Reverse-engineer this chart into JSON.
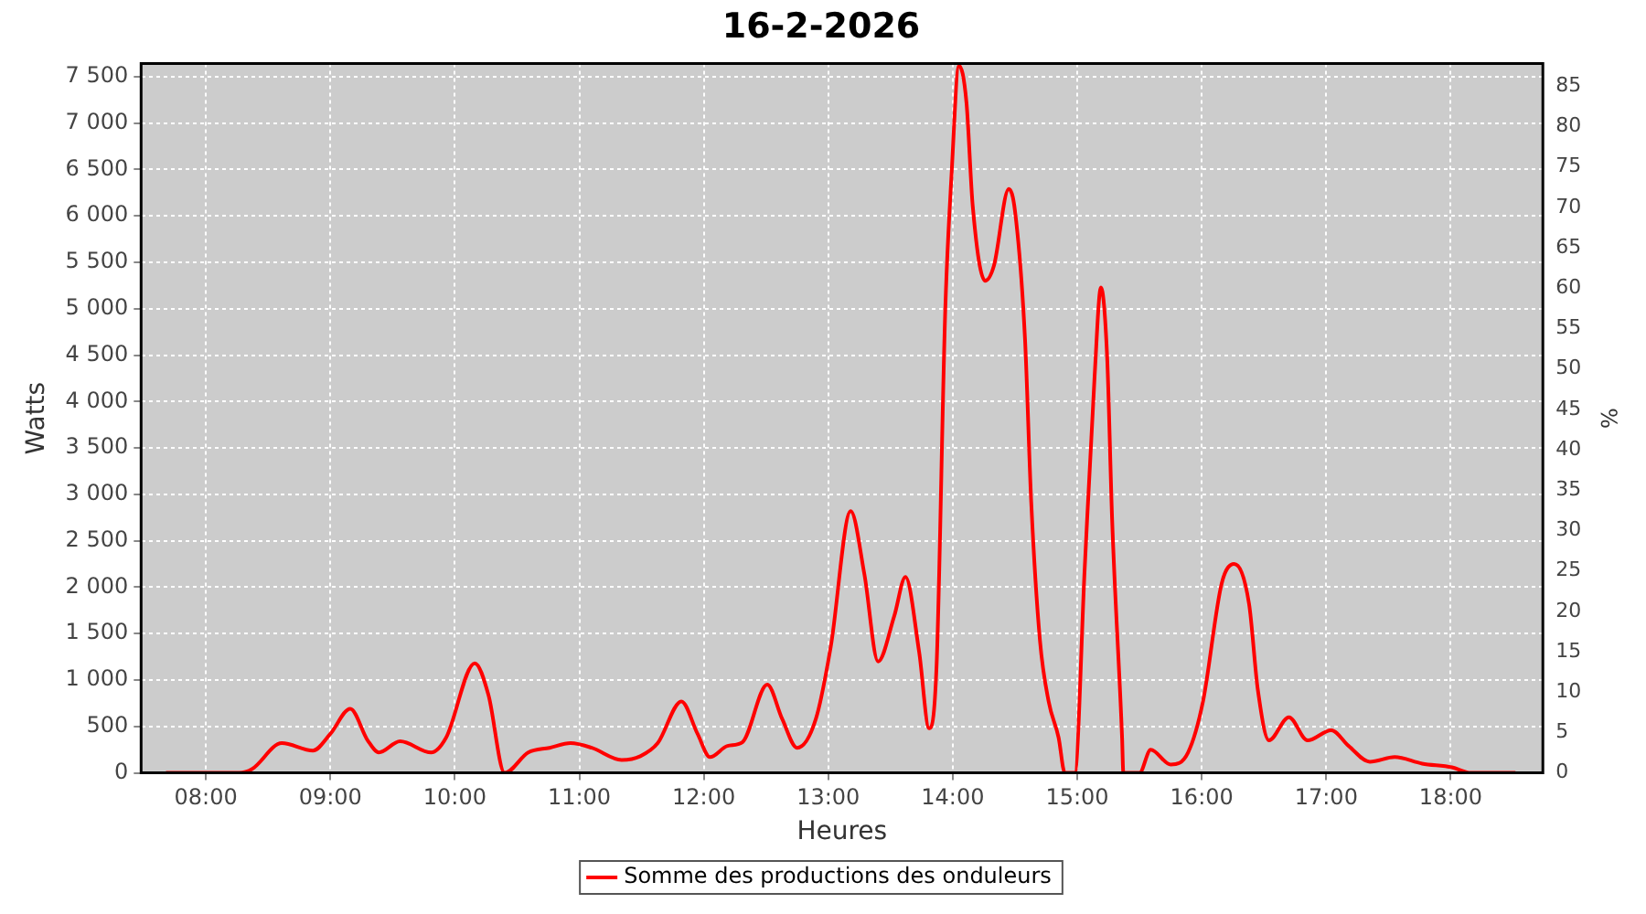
{
  "chart_data": {
    "type": "line",
    "title": "16-2-2026",
    "xlabel": "Heures",
    "ylabel": "Watts",
    "y2label": "%",
    "x": [
      7.68,
      8.27,
      8.37,
      8.61,
      8.86,
      9.0,
      9.16,
      9.3,
      9.39,
      9.56,
      9.81,
      9.93,
      10.16,
      10.27,
      10.4,
      10.59,
      10.76,
      10.93,
      11.1,
      11.34,
      11.49,
      11.63,
      11.82,
      11.95,
      12.05,
      12.19,
      12.31,
      12.51,
      12.63,
      12.75,
      12.9,
      13.02,
      13.18,
      13.29,
      13.4,
      13.53,
      13.62,
      13.73,
      13.81,
      13.87,
      13.94,
      13.99,
      14.05,
      14.11,
      14.16,
      14.26,
      14.33,
      14.45,
      14.5,
      14.58,
      14.63,
      14.7,
      14.77,
      14.85,
      14.9,
      14.98,
      15.06,
      15.14,
      15.19,
      15.24,
      15.28,
      15.36,
      15.37,
      15.5,
      15.59,
      15.75,
      15.89,
      16.01,
      16.16,
      16.26,
      16.38,
      16.45,
      16.54,
      16.7,
      16.85,
      17.04,
      17.18,
      17.35,
      17.55,
      17.77,
      18.01,
      18.16,
      18.52
    ],
    "series": [
      {
        "name": "Somme des productions des onduleurs",
        "color": "#ff0000",
        "values": [
          0,
          0,
          40,
          320,
          240,
          420,
          690,
          350,
          220,
          340,
          220,
          380,
          1180,
          840,
          0,
          220,
          270,
          320,
          270,
          140,
          180,
          320,
          770,
          420,
          170,
          290,
          330,
          950,
          580,
          270,
          580,
          1360,
          2820,
          2140,
          1200,
          1690,
          2110,
          1300,
          480,
          1160,
          5000,
          6440,
          7620,
          7220,
          6110,
          5300,
          5460,
          6290,
          6050,
          4680,
          2920,
          1430,
          770,
          380,
          0,
          0,
          2210,
          4290,
          5230,
          4480,
          2730,
          380,
          0,
          0,
          250,
          90,
          220,
          770,
          2040,
          2250,
          1820,
          900,
          350,
          600,
          350,
          460,
          290,
          120,
          170,
          100,
          60,
          0,
          0
        ]
      }
    ],
    "xlim": [
      7.48,
      18.74
    ],
    "xticks": [
      {
        "value": 8,
        "label": "08:00"
      },
      {
        "value": 9,
        "label": "09:00"
      },
      {
        "value": 10,
        "label": "10:00"
      },
      {
        "value": 11,
        "label": "11:00"
      },
      {
        "value": 12,
        "label": "12:00"
      },
      {
        "value": 13,
        "label": "13:00"
      },
      {
        "value": 14,
        "label": "14:00"
      },
      {
        "value": 15,
        "label": "15:00"
      },
      {
        "value": 16,
        "label": "16:00"
      },
      {
        "value": 17,
        "label": "17:00"
      },
      {
        "value": 18,
        "label": "18:00"
      }
    ],
    "ylim": [
      0,
      7640
    ],
    "yticks": [
      0,
      500,
      {
        "value": 1000,
        "label": "1 000"
      },
      {
        "value": 1500,
        "label": "1 500"
      },
      {
        "value": 2000,
        "label": "2 000"
      },
      {
        "value": 2500,
        "label": "2 500"
      },
      {
        "value": 3000,
        "label": "3 000"
      },
      {
        "value": 3500,
        "label": "3 500"
      },
      {
        "value": 4000,
        "label": "4 000"
      },
      {
        "value": 4500,
        "label": "4 500"
      },
      {
        "value": 5000,
        "label": "5 000"
      },
      {
        "value": 5500,
        "label": "5 500"
      },
      {
        "value": 6000,
        "label": "6 000"
      },
      {
        "value": 6500,
        "label": "6 500"
      },
      {
        "value": 7000,
        "label": "7 000"
      },
      {
        "value": 7500,
        "label": "7 500"
      }
    ],
    "y2lim": [
      0,
      87.8
    ],
    "y2ticks": [
      0,
      5,
      10,
      15,
      20,
      25,
      30,
      35,
      40,
      45,
      50,
      55,
      60,
      65,
      70,
      75,
      80,
      85
    ],
    "grid": true,
    "legend": "bottom",
    "marker": "none",
    "line_style": "solid"
  }
}
